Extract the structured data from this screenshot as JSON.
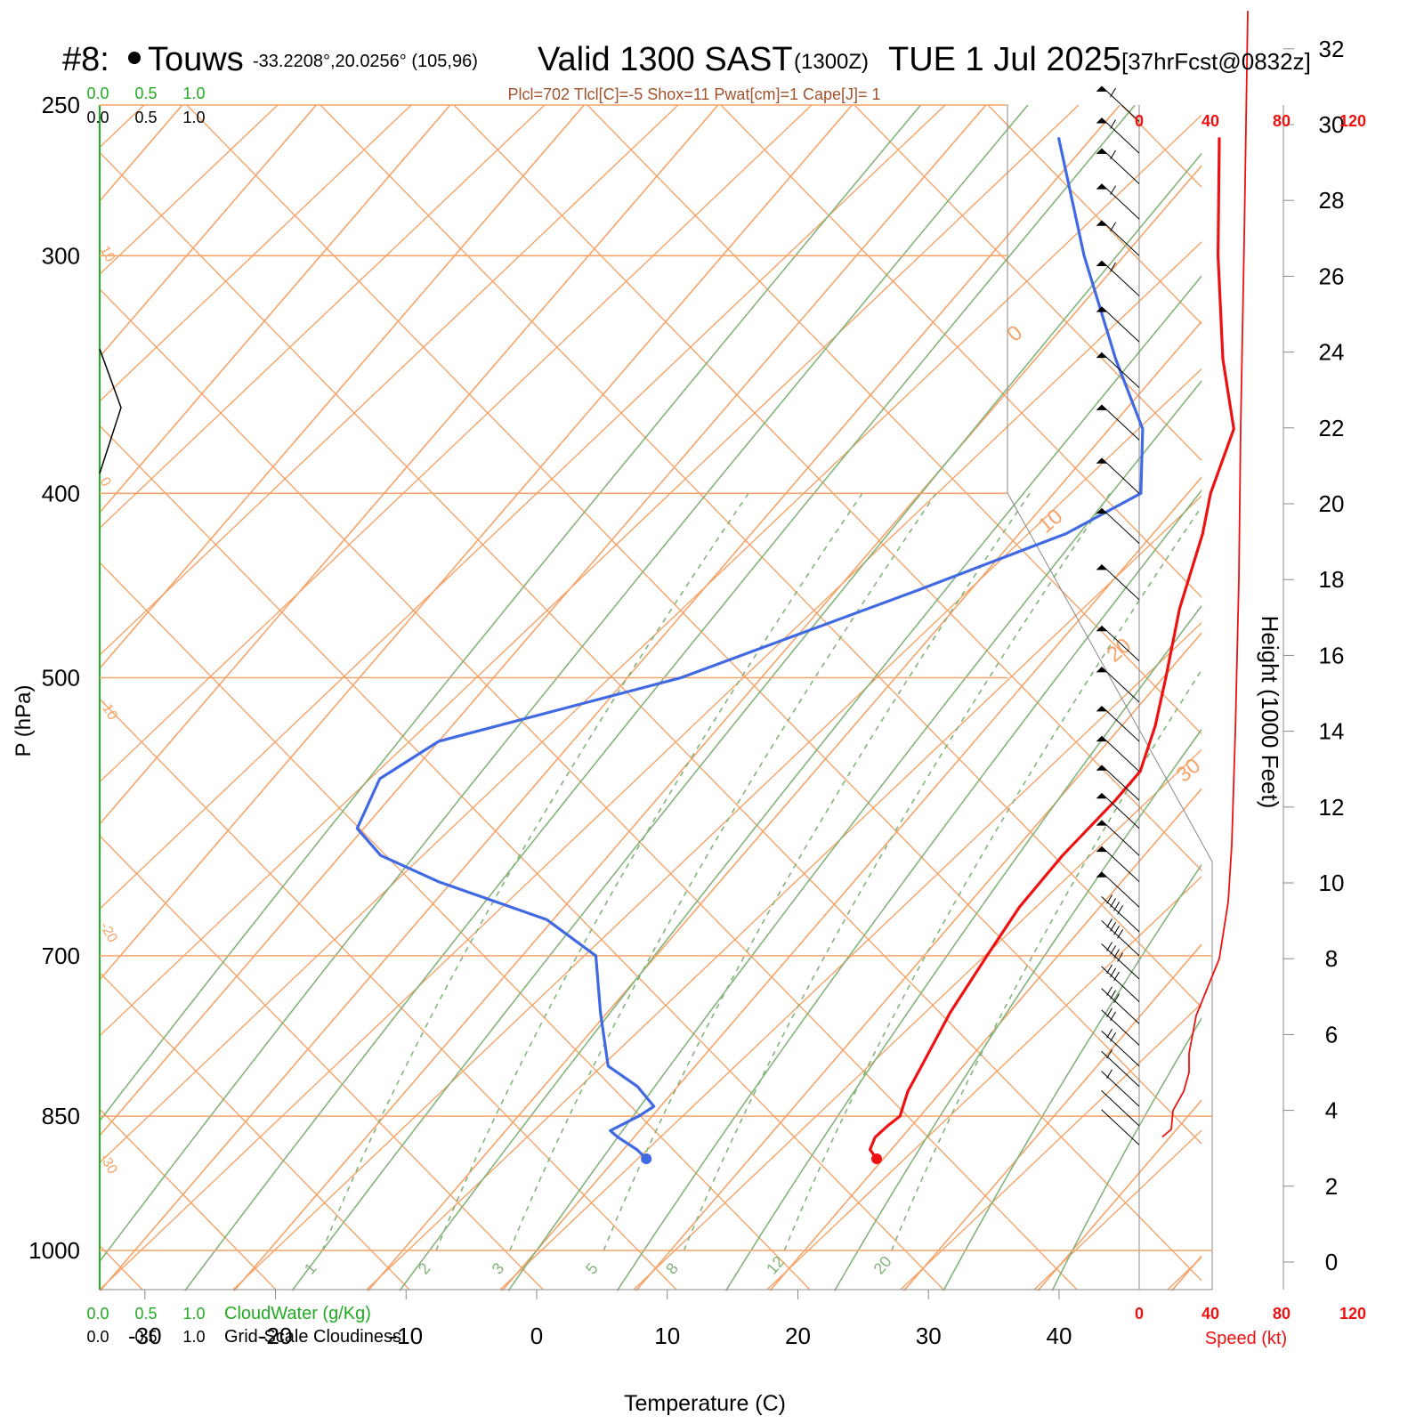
{
  "header": {
    "station_number": "#8:",
    "station_name": "Touws",
    "coordinates": "-33.2208°,20.0256° (105,96)",
    "valid_time": "Valid 1300 SAST",
    "zulu": "(1300Z)",
    "date": "TUE 1 Jul 2025",
    "forecast": "[37hrFcst@0832z]",
    "indices": "Plcl=702 Tlcl[C]=-5 Shox=11 Pwat[cm]=1 Cape[J]= 1"
  },
  "labels": {
    "pressure_axis": "P (hPa)",
    "temperature_axis": "Temperature (C)",
    "height_axis": "Height (1000 Feet)",
    "speed_axis": "Speed (kt)",
    "cloudwater_label": "CloudWater (g/Kg)",
    "cloudiness_label": "Grid-Scale Cloudiness"
  },
  "colors": {
    "temperature": "#ee1111",
    "dewpoint": "#4169e1",
    "isotherm": "#f4a46a",
    "dry_adiabat": "#84b37c",
    "mixing_ratio": "#84b37c",
    "cloudwater": "#22aa22",
    "indices_text": "#a0522d",
    "speed": "#ee1111"
  },
  "chart_data": {
    "type": "skew-t log-p sounding",
    "pressure_ticks": [
      250,
      300,
      400,
      500,
      700,
      850,
      1000
    ],
    "temperature_ticks": [
      -30,
      -20,
      -10,
      0,
      10,
      20,
      30,
      40
    ],
    "skew_isotherm_labels": [
      -30,
      -20,
      -10,
      0,
      10,
      20,
      30,
      10,
      0
    ],
    "isotherm_label_text": [
      "-30",
      "-20",
      "-10",
      "0",
      "10",
      "0",
      "10",
      "20",
      "30"
    ],
    "mixing_ratio_labels": [
      "1",
      "2",
      "3",
      "5",
      "8",
      "12",
      "20"
    ],
    "cloud_scale_ticks": [
      "0.0",
      "0.5",
      "1.0"
    ],
    "height_ticks": [
      0,
      2,
      4,
      6,
      8,
      10,
      12,
      14,
      16,
      18,
      20,
      22,
      24,
      26,
      28,
      30,
      32
    ],
    "speed_ticks": [
      0,
      40,
      80,
      120
    ],
    "temperature_profile": [
      {
        "p": 895,
        "t": 19.5
      },
      {
        "p": 885,
        "t": 18.4
      },
      {
        "p": 872,
        "t": 18.0
      },
      {
        "p": 860,
        "t": 18.2
      },
      {
        "p": 850,
        "t": 18.5
      },
      {
        "p": 825,
        "t": 17.5
      },
      {
        "p": 800,
        "t": 16.9
      },
      {
        "p": 750,
        "t": 15.6
      },
      {
        "p": 700,
        "t": 14.7
      },
      {
        "p": 660,
        "t": 14.0
      },
      {
        "p": 620,
        "t": 13.9
      },
      {
        "p": 580,
        "t": 14.3
      },
      {
        "p": 560,
        "t": 14.3
      },
      {
        "p": 530,
        "t": 12.5
      },
      {
        "p": 500,
        "t": 10.2
      },
      {
        "p": 460,
        "t": 6.8
      },
      {
        "p": 420,
        "t": 3.7
      },
      {
        "p": 400,
        "t": 1.7
      },
      {
        "p": 370,
        "t": -0.7
      },
      {
        "p": 340,
        "t": -6.0
      },
      {
        "p": 300,
        "t": -13.0
      },
      {
        "p": 260,
        "t": -20.5
      }
    ],
    "dewpoint_profile": [
      {
        "p": 895,
        "t": 2.3
      },
      {
        "p": 885,
        "t": 1.0
      },
      {
        "p": 872,
        "t": -1.2
      },
      {
        "p": 865,
        "t": -2.2
      },
      {
        "p": 850,
        "t": -1.0
      },
      {
        "p": 840,
        "t": -0.5
      },
      {
        "p": 820,
        "t": -3.0
      },
      {
        "p": 800,
        "t": -6.5
      },
      {
        "p": 750,
        "t": -10.5
      },
      {
        "p": 700,
        "t": -14.5
      },
      {
        "p": 670,
        "t": -20.5
      },
      {
        "p": 640,
        "t": -31.0
      },
      {
        "p": 620,
        "t": -37.0
      },
      {
        "p": 600,
        "t": -40.5
      },
      {
        "p": 565,
        "t": -42.0
      },
      {
        "p": 540,
        "t": -40.0
      },
      {
        "p": 500,
        "t": -26.0
      },
      {
        "p": 450,
        "t": -14.0
      },
      {
        "p": 420,
        "t": -6.5
      },
      {
        "p": 400,
        "t": -3.5
      },
      {
        "p": 370,
        "t": -7.5
      },
      {
        "p": 340,
        "t": -14.0
      },
      {
        "p": 300,
        "t": -23.0
      },
      {
        "p": 260,
        "t": -32.5
      }
    ],
    "wind_barbs_pressure": [
      255,
      265,
      275,
      287,
      300,
      315,
      333,
      352,
      375,
      400,
      425,
      455,
      490,
      515,
      540,
      560,
      580,
      600,
      620,
      640,
      660,
      680,
      700,
      720,
      740,
      760,
      780,
      800,
      820,
      840,
      860,
      880
    ],
    "wind_barb_speed_kt": [
      60,
      60,
      60,
      60,
      60,
      60,
      55,
      55,
      50,
      50,
      50,
      50,
      50,
      50,
      50,
      50,
      50,
      50,
      50,
      50,
      50,
      45,
      45,
      40,
      35,
      30,
      25,
      20,
      15,
      10,
      5,
      5
    ],
    "wind_speed_profile": [
      {
        "h": 3.3,
        "kt": 13
      },
      {
        "h": 3.5,
        "kt": 18
      },
      {
        "h": 4.0,
        "kt": 19
      },
      {
        "h": 4.5,
        "kt": 25
      },
      {
        "h": 5.0,
        "kt": 28
      },
      {
        "h": 5.5,
        "kt": 28
      },
      {
        "h": 6.5,
        "kt": 32
      },
      {
        "h": 8.0,
        "kt": 45
      },
      {
        "h": 9.5,
        "kt": 50
      },
      {
        "h": 11.0,
        "kt": 52
      },
      {
        "h": 14.0,
        "kt": 54
      },
      {
        "h": 18.0,
        "kt": 56
      },
      {
        "h": 22.0,
        "kt": 57
      },
      {
        "h": 27.0,
        "kt": 59
      },
      {
        "h": 33.0,
        "kt": 61
      }
    ],
    "grid": true,
    "legend": "none"
  }
}
